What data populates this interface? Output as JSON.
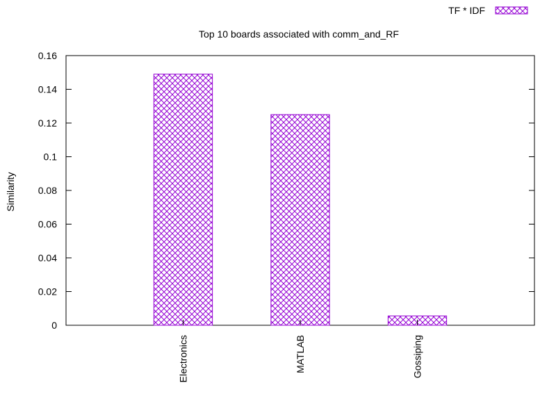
{
  "chart_data": {
    "type": "bar",
    "title": "Top 10 boards associated with comm_and_RF",
    "xlabel": "",
    "ylabel": "Similarity",
    "categories": [
      "Electronics",
      "MATLAB",
      "Gossiping"
    ],
    "series": [
      {
        "name": "TF * IDF",
        "values": [
          0.149,
          0.125,
          0.0055
        ],
        "color": "#9400d3"
      }
    ],
    "ylim": [
      0,
      0.16
    ],
    "yticks": [
      "0",
      "0.02",
      "0.04",
      "0.06",
      "0.08",
      "0.1",
      "0.12",
      "0.14",
      "0.16"
    ],
    "grid": false,
    "legend_position": "top-right",
    "bar_fill": "crosshatch"
  }
}
